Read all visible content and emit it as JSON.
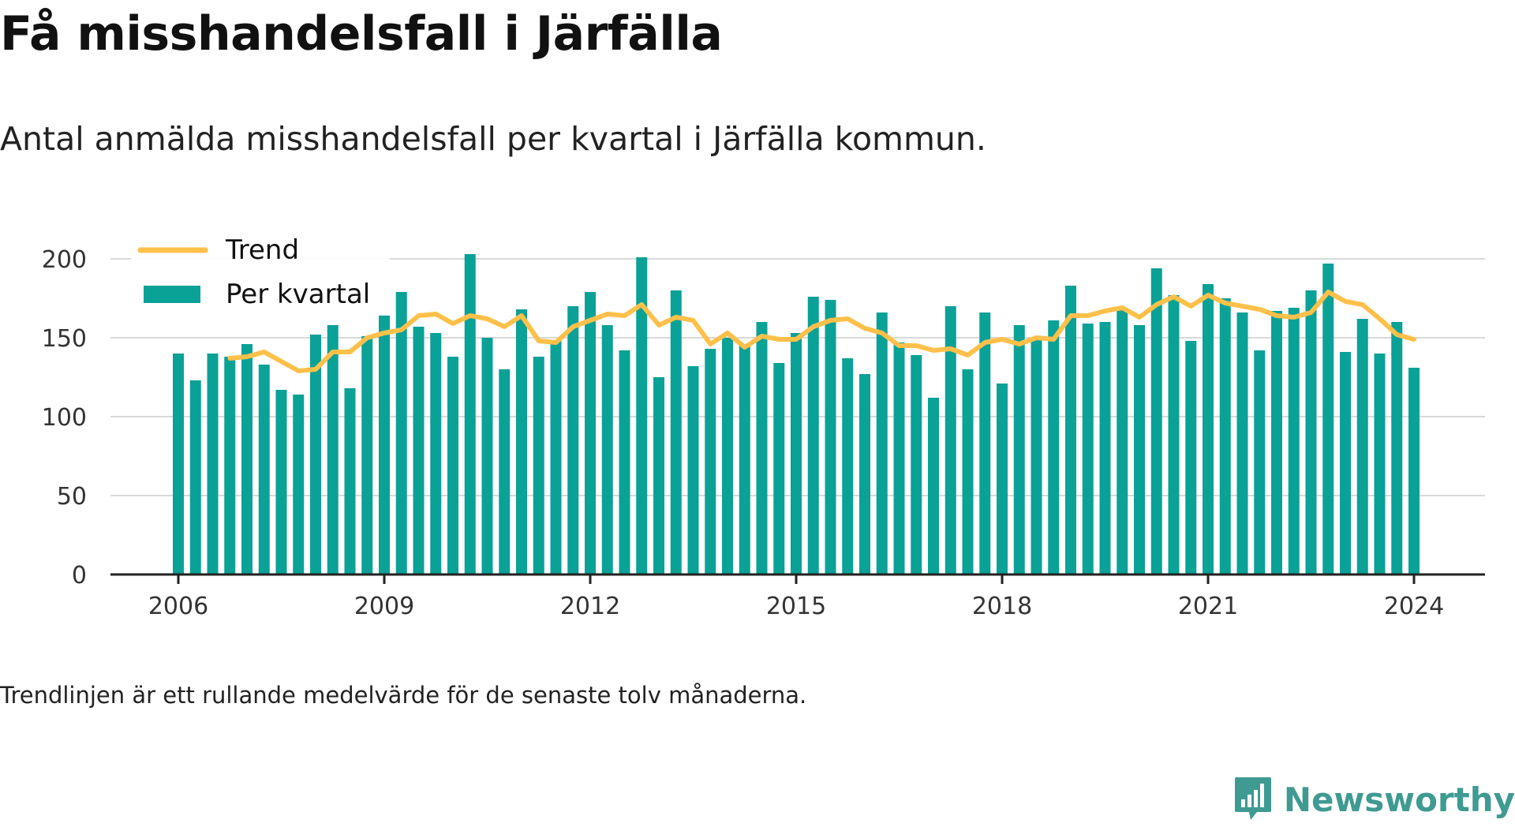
{
  "title": "Få misshandelsfall i Järfälla",
  "subtitle": "Antal anmälda misshandelsfall per kvartal i Järfälla kommun.",
  "footnote": "Trendlinjen är ett rullande medelvärde för de senaste tolv månaderna.",
  "brand": {
    "name": "Newsworthy",
    "icon": "newsworthy-logo-icon"
  },
  "colors": {
    "bars": "#0aa197",
    "trend": "#ffc04a",
    "grid": "#d9d9d9",
    "axis": "#222222",
    "brand": "#3f9a92"
  },
  "chart_data": {
    "type": "bar",
    "title": "",
    "xlabel": "",
    "ylabel": "",
    "ylim": [
      0,
      200
    ],
    "yticks": [
      "0",
      "50",
      "100",
      "150",
      "200"
    ],
    "xticks": [
      "2006",
      "2009",
      "2012",
      "2015",
      "2018",
      "2021",
      "2024"
    ],
    "grid": true,
    "legend_position": "top-left",
    "x": [
      "2006 Q1",
      "2006 Q2",
      "2006 Q3",
      "2006 Q4",
      "2007 Q1",
      "2007 Q2",
      "2007 Q3",
      "2007 Q4",
      "2008 Q1",
      "2008 Q2",
      "2008 Q3",
      "2008 Q4",
      "2009 Q1",
      "2009 Q2",
      "2009 Q3",
      "2009 Q4",
      "2010 Q1",
      "2010 Q2",
      "2010 Q3",
      "2010 Q4",
      "2011 Q1",
      "2011 Q2",
      "2011 Q3",
      "2011 Q4",
      "2012 Q1",
      "2012 Q2",
      "2012 Q3",
      "2012 Q4",
      "2013 Q1",
      "2013 Q2",
      "2013 Q3",
      "2013 Q4",
      "2014 Q1",
      "2014 Q2",
      "2014 Q3",
      "2014 Q4",
      "2015 Q1",
      "2015 Q2",
      "2015 Q3",
      "2015 Q4",
      "2016 Q1",
      "2016 Q2",
      "2016 Q3",
      "2016 Q4",
      "2017 Q1",
      "2017 Q2",
      "2017 Q3",
      "2017 Q4",
      "2018 Q1",
      "2018 Q2",
      "2018 Q3",
      "2018 Q4",
      "2019 Q1",
      "2019 Q2",
      "2019 Q3",
      "2019 Q4",
      "2020 Q1",
      "2020 Q2",
      "2020 Q3",
      "2020 Q4",
      "2021 Q1",
      "2021 Q2",
      "2021 Q3",
      "2021 Q4",
      "2022 Q1",
      "2022 Q2",
      "2022 Q3",
      "2022 Q4",
      "2023 Q1",
      "2023 Q2",
      "2023 Q3",
      "2023 Q4",
      "2024 Q1"
    ],
    "series": [
      {
        "name": "Per kvartal",
        "type": "bar",
        "values": [
          140,
          123,
          140,
          138,
          146,
          133,
          117,
          114,
          152,
          158,
          118,
          151,
          165,
          179,
          157,
          153,
          138,
          203,
          150,
          130,
          168,
          138,
          148,
          170,
          179,
          158,
          142,
          201,
          125,
          180,
          132,
          143,
          150,
          145,
          160,
          134,
          153,
          176,
          174,
          137,
          127,
          166,
          147,
          139,
          112,
          170,
          130,
          166,
          121,
          158,
          150,
          161,
          183,
          159,
          160,
          168,
          158,
          194,
          177,
          148,
          184,
          175,
          166,
          142,
          167,
          169,
          180,
          197,
          141,
          162,
          140,
          160,
          131
        ]
      },
      {
        "name": "Trend",
        "type": "line",
        "values": [
          null,
          null,
          null,
          137,
          138,
          141,
          135,
          129,
          130,
          141,
          141,
          150,
          153,
          155,
          164,
          165,
          159,
          164,
          162,
          157,
          164,
          148,
          147,
          157,
          161,
          165,
          164,
          171,
          158,
          163,
          161,
          146,
          153,
          144,
          151,
          149,
          149,
          157,
          161,
          162,
          156,
          153,
          145,
          145,
          142,
          143,
          139,
          147,
          149,
          146,
          150,
          149,
          164,
          164,
          167,
          169,
          163,
          171,
          176,
          170,
          177,
          172,
          170,
          168,
          164,
          163,
          166,
          179,
          173,
          171,
          162,
          152,
          149
        ]
      }
    ]
  }
}
